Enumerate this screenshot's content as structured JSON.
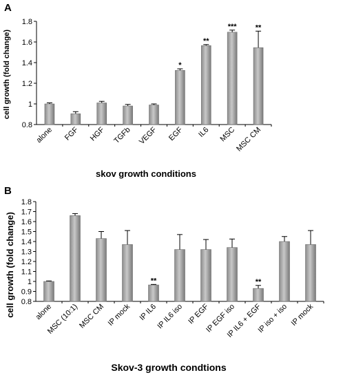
{
  "chart_data": [
    {
      "type": "bar",
      "panel": "A",
      "xlabel": "skov growth conditions",
      "ylabel": "cell growth (fold change)",
      "ylim": [
        0.8,
        1.8
      ],
      "yticks": [
        "0.8",
        "1",
        "1.2",
        "1.4",
        "1.6",
        "1.8"
      ],
      "categories": [
        "alone",
        "FGF",
        "HGF",
        "TGFb",
        "VEGF",
        "EGF",
        "IL6",
        "MSC",
        "MSC CM"
      ],
      "values": [
        1.0,
        0.905,
        1.01,
        0.98,
        0.99,
        1.325,
        1.565,
        1.695,
        1.545
      ],
      "errors": [
        0.01,
        0.02,
        0.015,
        0.015,
        0.01,
        0.015,
        0.01,
        0.02,
        0.16
      ],
      "significance": [
        "",
        "",
        "",
        "",
        "",
        "*",
        "**",
        "***",
        "**"
      ],
      "bar_color": "#a6a6a6"
    },
    {
      "type": "bar",
      "panel": "B",
      "xlabel": "Skov-3 growth condtions",
      "ylabel": "cell growth (fold change)",
      "ylim": [
        0.8,
        1.8
      ],
      "yticks": [
        "0.8",
        "0.9",
        "1",
        "1.1",
        "1.2",
        "1.3",
        "1.4",
        "1.5",
        "1.6",
        "1.7",
        "1.8"
      ],
      "categories": [
        "alone",
        "MSC (10:1)",
        "MSC CM",
        "IP mock",
        "IP IL6",
        "IP IL6 iso",
        "IP EGF",
        "IP EGF iso",
        "IP IL6 + EGF",
        "IP iso + iso",
        "IP mock"
      ],
      "values": [
        1.0,
        1.66,
        1.43,
        1.37,
        0.965,
        1.32,
        1.32,
        1.34,
        0.93,
        1.4,
        1.37
      ],
      "errors": [
        0.005,
        0.02,
        0.07,
        0.14,
        0.005,
        0.15,
        0.1,
        0.085,
        0.03,
        0.05,
        0.14
      ],
      "significance": [
        "",
        "",
        "",
        "",
        "**",
        "",
        "",
        "",
        "**",
        "",
        ""
      ],
      "bar_color": "#a6a6a6"
    }
  ]
}
